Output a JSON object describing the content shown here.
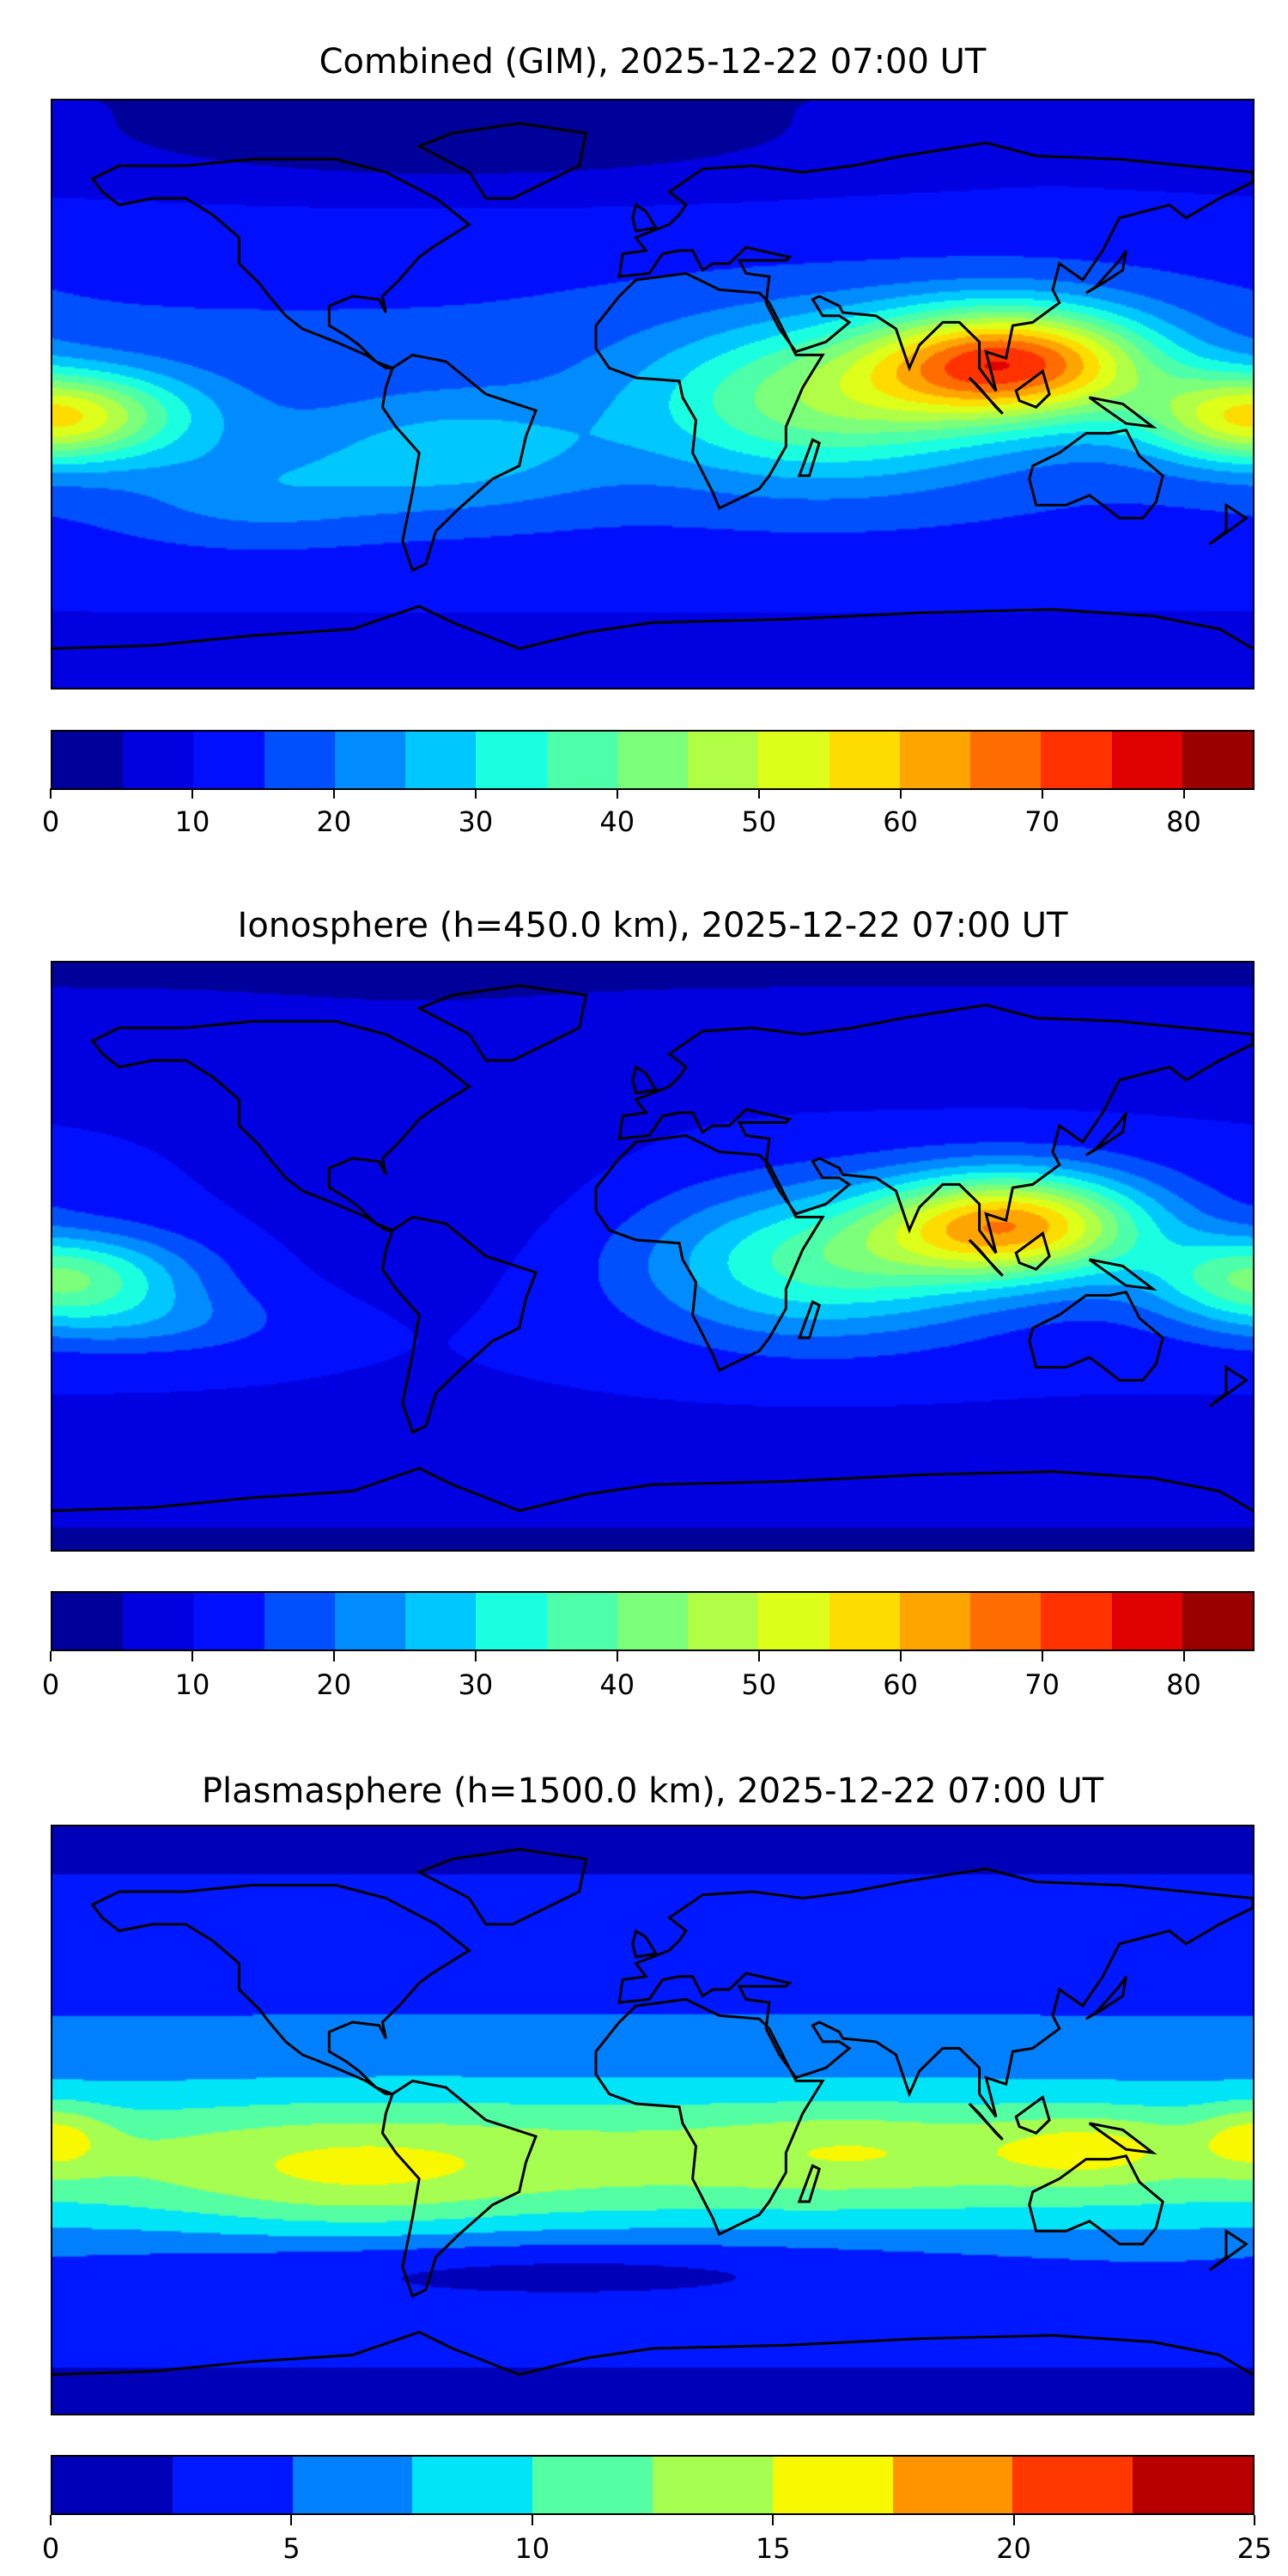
{
  "chart_data": [
    {
      "type": "heatmap",
      "title": "Combined (GIM), 2025-12-22 07:00 UT",
      "levels": [
        0,
        5,
        10,
        15,
        20,
        25,
        30,
        35,
        40,
        45,
        50,
        55,
        60,
        65,
        70,
        75,
        80,
        85
      ],
      "colorbar_ticks": [
        "0",
        "10",
        "20",
        "30",
        "40",
        "50",
        "60",
        "70",
        "80"
      ],
      "colorbar_tick_values": [
        0,
        10,
        20,
        30,
        40,
        50,
        60,
        70,
        80
      ],
      "vmin": 0,
      "vmax": 85,
      "colors": [
        "#00009a",
        "#0000e0",
        "#0010ff",
        "#0050ff",
        "#008cff",
        "#00c8ff",
        "#1affdf",
        "#4dffa9",
        "#7cff7a",
        "#b0ff46",
        "#ddff1a",
        "#ffdc00",
        "#ffa500",
        "#ff6d00",
        "#ff3200",
        "#e00000",
        "#9a0000"
      ],
      "peak_region": "South/Southeast Asia, ~60-65",
      "grid": false
    },
    {
      "type": "heatmap",
      "title": "Ionosphere  (h=450.0 km), 2025-12-22 07:00 UT",
      "levels": [
        0,
        5,
        10,
        15,
        20,
        25,
        30,
        35,
        40,
        45,
        50,
        55,
        60,
        65,
        70,
        75,
        80,
        85
      ],
      "colorbar_ticks": [
        "0",
        "10",
        "20",
        "30",
        "40",
        "50",
        "60",
        "70",
        "80"
      ],
      "colorbar_tick_values": [
        0,
        10,
        20,
        30,
        40,
        50,
        60,
        70,
        80
      ],
      "vmin": 0,
      "vmax": 85,
      "colors": [
        "#00009a",
        "#0000e0",
        "#0010ff",
        "#0050ff",
        "#008cff",
        "#00c8ff",
        "#1affdf",
        "#4dffa9",
        "#7cff7a",
        "#b0ff46",
        "#ddff1a",
        "#ffdc00",
        "#ffa500",
        "#ff6d00",
        "#ff3200",
        "#e00000",
        "#9a0000"
      ],
      "peak_region": "South/Southeast Asia, ~55-60",
      "grid": false
    },
    {
      "type": "heatmap",
      "title": "Plasmasphere (h=1500.0 km), 2025-12-22 07:00 UT",
      "levels": [
        0,
        2.5,
        5,
        7.5,
        10,
        12.5,
        15,
        17.5,
        20,
        22.5,
        25
      ],
      "colorbar_ticks": [
        "0",
        "5",
        "10",
        "15",
        "20",
        "25"
      ],
      "colorbar_tick_values": [
        0,
        5,
        10,
        15,
        20,
        25
      ],
      "vmin": 0,
      "vmax": 25,
      "colors": [
        "#0000b8",
        "#0018ff",
        "#0080ff",
        "#00e4f8",
        "#54ffa4",
        "#a6ff50",
        "#f8f800",
        "#ff9400",
        "#ff3800",
        "#b80000"
      ],
      "peak_region": "Western Pacific / Indonesia, ~15-17.5",
      "grid": false
    }
  ]
}
